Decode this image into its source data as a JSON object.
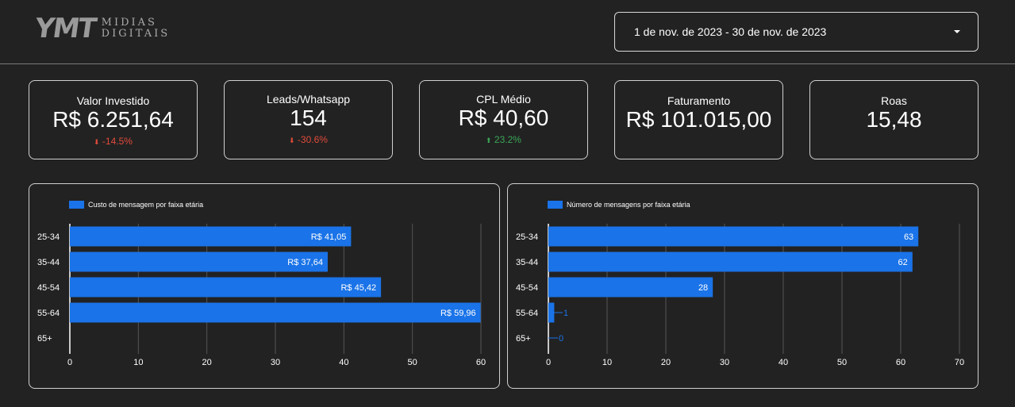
{
  "logo": {
    "mark": "YMT",
    "line1": "MIDIAS",
    "line2": "DIGITAIS"
  },
  "date_range": {
    "value": "1 de nov. de 2023 - 30 de nov. de 2023"
  },
  "kpis": [
    {
      "label": "Valor Investido",
      "value": "R$ 6.251,64",
      "delta": "-14.5%",
      "direction": "down",
      "arrow": "⬇"
    },
    {
      "label": "Leads/Whatsapp",
      "value": "154",
      "delta": "-30.6%",
      "direction": "down",
      "arrow": "⬇"
    },
    {
      "label": "CPL Médio",
      "value": "R$ 40,60",
      "delta": "23.2%",
      "direction": "up",
      "arrow": "⬆"
    },
    {
      "label": "Faturamento",
      "value": "R$ 101.015,00"
    },
    {
      "label": "Roas",
      "value": "15,48"
    }
  ],
  "colors": {
    "bar": "#1a73e8",
    "grid": "#555555",
    "axis": "#ffffff",
    "down": "#e24b3b",
    "up": "#3aa757"
  },
  "chart_data": [
    {
      "type": "bar",
      "orientation": "horizontal",
      "title": "Custo de mensagem por faixa etária",
      "legend": "Custo de mensagem por faixa etária",
      "categories": [
        "25-34",
        "35-44",
        "45-54",
        "55-64",
        "65+"
      ],
      "values": [
        41.05,
        37.64,
        45.42,
        59.96,
        0
      ],
      "value_labels": [
        "R$ 41,05",
        "R$ 37,64",
        "R$ 45,42",
        "R$ 59,96",
        ""
      ],
      "xlim": [
        0,
        60
      ],
      "ticks": [
        0,
        10,
        20,
        30,
        40,
        50,
        60
      ],
      "xlabel": "",
      "ylabel": "",
      "grid": true
    },
    {
      "type": "bar",
      "orientation": "horizontal",
      "title": "Número de mensagens por faixa etária",
      "legend": "Número de mensagens por faixa etária",
      "categories": [
        "25-34",
        "35-44",
        "45-54",
        "55-64",
        "65+"
      ],
      "values": [
        63,
        62,
        28,
        1,
        0
      ],
      "value_labels": [
        "63",
        "62",
        "28",
        "1",
        "0"
      ],
      "xlim": [
        0,
        70
      ],
      "ticks": [
        0,
        10,
        20,
        30,
        40,
        50,
        60,
        70
      ],
      "xlabel": "",
      "ylabel": "",
      "grid": true
    }
  ]
}
